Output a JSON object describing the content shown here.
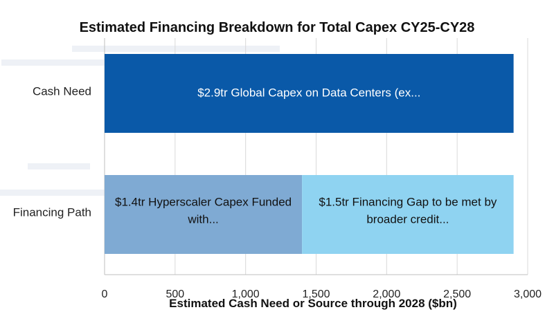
{
  "chart_data": {
    "type": "bar",
    "orientation": "horizontal",
    "stacked": true,
    "title": "Estimated Financing Breakdown for Total Capex CY25-CY28",
    "xlabel": "Estimated Cash Need or Source through 2028 ($bn)",
    "ylabel": "",
    "xlim": [
      0,
      3000
    ],
    "xticks": [
      0,
      500,
      1000,
      1500,
      2000,
      2500,
      3000
    ],
    "xtick_labels": [
      "0",
      "500",
      "1,000",
      "1,500",
      "2,000",
      "2,500",
      "3,000"
    ],
    "grid": "vertical",
    "categories": [
      "Cash Need",
      "Financing Path"
    ],
    "series": [
      {
        "name": "Global Capex on Data Centers",
        "color": "#0a59a8",
        "label_color": "#ffffff",
        "values": [
          2900,
          0
        ],
        "labels": [
          "$2.9tr Global Capex on Data Centers (ex...",
          ""
        ]
      },
      {
        "name": "Hyperscaler Capex Funded",
        "color": "#7faad3",
        "label_color": "#111111",
        "values": [
          0,
          1400
        ],
        "labels": [
          "",
          "$1.4tr Hyperscaler Capex Funded with..."
        ]
      },
      {
        "name": "Financing Gap",
        "color": "#8fd3f1",
        "label_color": "#111111",
        "values": [
          0,
          1500
        ],
        "labels": [
          "",
          "$1.5tr Financing Gap to be met by broader credit..."
        ]
      }
    ]
  }
}
